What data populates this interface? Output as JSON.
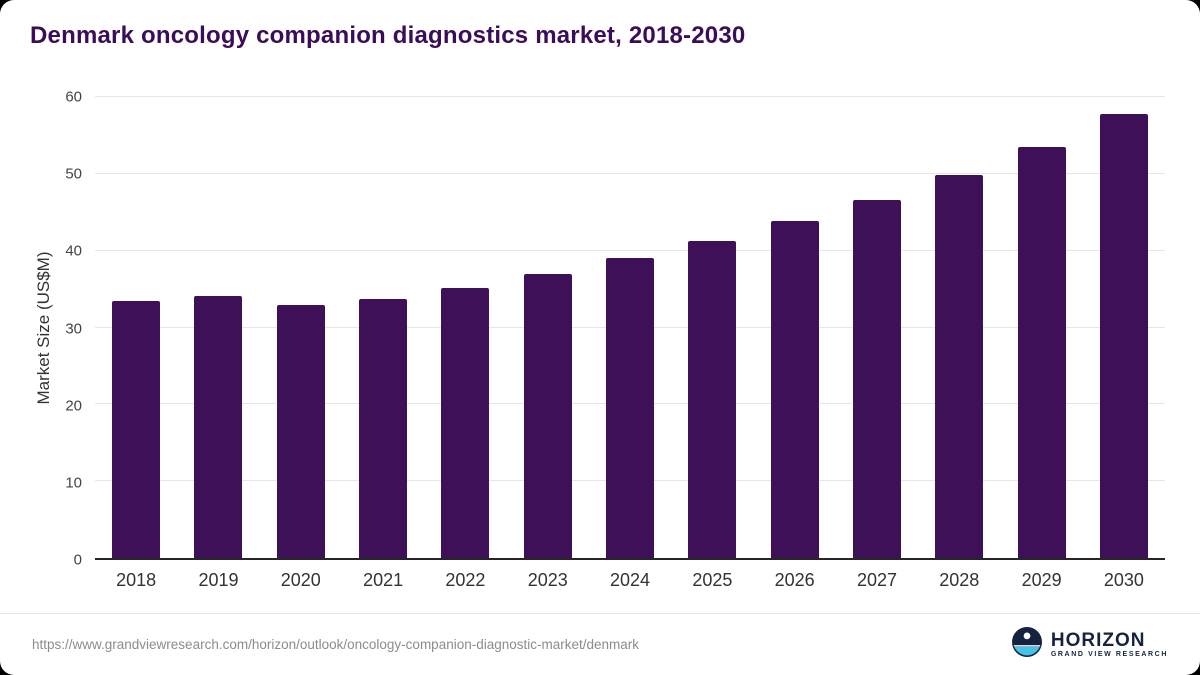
{
  "title": "Denmark oncology companion diagnostics market, 2018-2030",
  "footer": {
    "source_url": "https://www.grandviewresearch.com/horizon/outlook/oncology-companion-diagnostic-market/denmark",
    "logo_name": "HORIZON",
    "logo_subtext": "GRAND VIEW RESEARCH"
  },
  "colors": {
    "bar": "#3e1057",
    "title": "#3b0d59",
    "grid": "#e6e6e6",
    "axis_line": "#262626",
    "url_text": "#8c8c8c",
    "logo_navy": "#16233f",
    "logo_blue": "#45c2e8"
  },
  "chart_data": {
    "type": "bar",
    "title": "Denmark oncology companion diagnostics market, 2018-2030",
    "categories": [
      "2018",
      "2019",
      "2020",
      "2021",
      "2022",
      "2023",
      "2024",
      "2025",
      "2026",
      "2027",
      "2028",
      "2029",
      "2030"
    ],
    "values": [
      33.4,
      34.1,
      32.9,
      33.7,
      35.1,
      37.0,
      39.0,
      41.2,
      43.9,
      46.6,
      49.9,
      53.5,
      57.8
    ],
    "xlabel": "",
    "ylabel": "Market Size (US$M)",
    "ylim": [
      0,
      60
    ],
    "yticks": [
      0,
      10,
      20,
      30,
      40,
      50,
      60
    ],
    "grid": "horizontal",
    "legend": "none",
    "bar_color": "#3e1057"
  }
}
